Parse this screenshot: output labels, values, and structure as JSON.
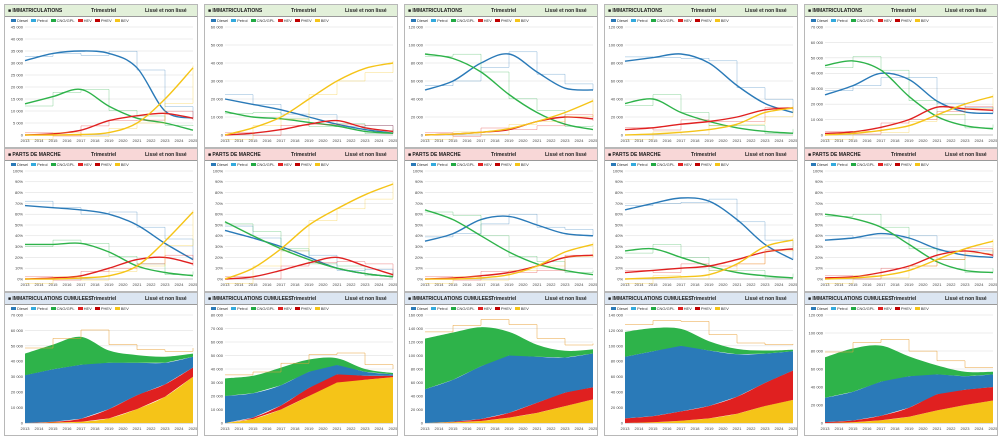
{
  "labels": {
    "freq": "Trimestriel",
    "scope": "Lissé et non lissé"
  },
  "legend": [
    {
      "name": "Diesel",
      "color": "#2a7ab8"
    },
    {
      "name": "Petrol",
      "color": "#33aadd"
    },
    {
      "name": "CNG/GPL",
      "color": "#22aa44"
    },
    {
      "name": "HEV",
      "color": "#e02020"
    },
    {
      "name": "PHEV",
      "color": "#c00000"
    },
    {
      "name": "BEV",
      "color": "#f5c418"
    }
  ],
  "years": [
    "2013",
    "2014",
    "2015",
    "2016",
    "2017",
    "2018",
    "2019",
    "2020",
    "2021",
    "2022",
    "2023",
    "2024",
    "2025"
  ],
  "colors": {
    "diesel": "#2a7ab8",
    "green": "#2eb34a",
    "hev": "#e02020",
    "bev": "#f5c418",
    "row1": "#e2f0d9",
    "row2": "#f8d7d7",
    "row3": "#dbe5f1"
  },
  "chart_data": [
    {
      "type": "line",
      "title": "IMMATRICULATIONS",
      "ylim": [
        0,
        45000
      ],
      "yticks": [
        "0",
        "5 000",
        "10 000",
        "15 000",
        "20 000",
        "25 000",
        "30 000",
        "35 000",
        "40 000",
        "45 000"
      ],
      "series": [
        {
          "values": [
            31000,
            34000,
            35000,
            34000,
            28000,
            10000,
            7000
          ]
        },
        {
          "values": [
            13000,
            16000,
            19000,
            12000,
            7000,
            5000,
            2000
          ]
        },
        {
          "values": [
            0,
            500,
            2000,
            6000,
            8000,
            9000,
            7000
          ]
        },
        {
          "values": [
            0,
            0,
            200,
            1000,
            5000,
            15000,
            28000
          ]
        }
      ]
    },
    {
      "type": "line",
      "title": "IMMATRICULATIONS",
      "ylim": [
        0,
        60000
      ],
      "yticks": [
        "0",
        "10 000",
        "20 000",
        "30 000",
        "40 000",
        "50 000",
        "60 000"
      ],
      "series": [
        {
          "values": [
            20000,
            17000,
            14000,
            10000,
            6000,
            3000,
            1000
          ]
        },
        {
          "values": [
            13000,
            10000,
            9000,
            7000,
            5000,
            2000,
            1000
          ]
        },
        {
          "values": [
            0,
            1000,
            3000,
            6000,
            8000,
            4000,
            2000
          ]
        },
        {
          "values": [
            0,
            4000,
            10000,
            20000,
            30000,
            37000,
            40000
          ]
        }
      ]
    },
    {
      "type": "line",
      "title": "IMMATRICULATIONS",
      "ylim": [
        0,
        120000
      ],
      "yticks": [
        "0",
        "20 000",
        "40 000",
        "60 000",
        "80 000",
        "100 000",
        "120 000"
      ],
      "series": [
        {
          "values": [
            50000,
            60000,
            80000,
            90000,
            70000,
            52000,
            50000
          ]
        },
        {
          "values": [
            90000,
            85000,
            70000,
            45000,
            25000,
            12000,
            6000
          ]
        },
        {
          "values": [
            0,
            1000,
            3000,
            6000,
            15000,
            20000,
            18000
          ]
        },
        {
          "values": [
            0,
            1000,
            3000,
            7000,
            15000,
            25000,
            38000
          ]
        }
      ]
    },
    {
      "type": "line",
      "title": "IMMATRICULATIONS",
      "ylim": [
        0,
        120000
      ],
      "yticks": [
        "0",
        "20 000",
        "40 000",
        "60 000",
        "80 000",
        "100 000",
        "120 000"
      ],
      "series": [
        {
          "values": [
            82000,
            86000,
            90000,
            80000,
            55000,
            35000,
            25000
          ]
        },
        {
          "values": [
            35000,
            40000,
            25000,
            15000,
            8000,
            4000,
            2000
          ]
        },
        {
          "values": [
            6000,
            8000,
            12000,
            15000,
            20000,
            28000,
            30000
          ]
        },
        {
          "values": [
            0,
            1000,
            3000,
            6000,
            12000,
            25000,
            30000
          ]
        }
      ]
    },
    {
      "type": "line",
      "title": "IMMATRICULATIONS",
      "ylim": [
        0,
        70000
      ],
      "yticks": [
        "0",
        "10 000",
        "20 000",
        "30 000",
        "40 000",
        "50 000",
        "60 000",
        "70 000"
      ],
      "series": [
        {
          "values": [
            26000,
            32000,
            40000,
            36000,
            22000,
            15000,
            14000
          ]
        },
        {
          "values": [
            45000,
            48000,
            42000,
            25000,
            12000,
            6000,
            4000
          ]
        },
        {
          "values": [
            1000,
            2000,
            5000,
            10000,
            18000,
            17000,
            16000
          ]
        },
        {
          "values": [
            0,
            1000,
            3000,
            6000,
            13000,
            20000,
            25000
          ]
        }
      ]
    },
    {
      "type": "line",
      "title": "PARTS DE MARCHE",
      "ylim": [
        0,
        100
      ],
      "yticks": [
        "0%",
        "10%",
        "20%",
        "30%",
        "40%",
        "50%",
        "60%",
        "70%",
        "80%",
        "90%",
        "100%"
      ],
      "series": [
        {
          "values": [
            68,
            66,
            64,
            60,
            50,
            33,
            18
          ]
        },
        {
          "values": [
            32,
            32,
            33,
            25,
            12,
            6,
            3
          ]
        },
        {
          "values": [
            0,
            1,
            3,
            10,
            18,
            20,
            14
          ]
        },
        {
          "values": [
            0,
            0,
            1,
            3,
            12,
            35,
            62
          ]
        }
      ]
    },
    {
      "type": "line",
      "title": "PARTS DE MARCHE",
      "ylim": [
        0,
        100
      ],
      "yticks": [
        "0%",
        "10%",
        "20%",
        "30%",
        "40%",
        "50%",
        "60%",
        "70%",
        "80%",
        "90%",
        "100%"
      ],
      "series": [
        {
          "values": [
            45,
            38,
            30,
            20,
            10,
            5,
            2
          ]
        },
        {
          "values": [
            53,
            40,
            28,
            18,
            10,
            5,
            2
          ]
        },
        {
          "values": [
            0,
            2,
            8,
            15,
            20,
            12,
            4
          ]
        },
        {
          "values": [
            0,
            10,
            28,
            50,
            65,
            78,
            88
          ]
        }
      ]
    },
    {
      "type": "line",
      "title": "PARTS DE MARCHE",
      "ylim": [
        0,
        100
      ],
      "yticks": [
        "0%",
        "10%",
        "20%",
        "30%",
        "40%",
        "50%",
        "60%",
        "70%",
        "80%",
        "90%",
        "100%"
      ],
      "series": [
        {
          "values": [
            35,
            42,
            55,
            58,
            50,
            42,
            40
          ]
        },
        {
          "values": [
            64,
            55,
            40,
            25,
            14,
            8,
            4
          ]
        },
        {
          "values": [
            0,
            1,
            3,
            6,
            12,
            20,
            22
          ]
        },
        {
          "values": [
            0,
            0,
            1,
            4,
            12,
            25,
            32
          ]
        }
      ]
    },
    {
      "type": "line",
      "title": "PARTS DE MARCHE",
      "ylim": [
        0,
        100
      ],
      "yticks": [
        "0%",
        "10%",
        "20%",
        "30%",
        "40%",
        "50%",
        "60%",
        "70%",
        "80%",
        "90%",
        "100%"
      ],
      "series": [
        {
          "values": [
            64,
            70,
            75,
            72,
            55,
            32,
            18
          ]
        },
        {
          "values": [
            26,
            28,
            20,
            12,
            6,
            3,
            1
          ]
        },
        {
          "values": [
            6,
            8,
            10,
            12,
            18,
            25,
            28
          ]
        },
        {
          "values": [
            0,
            1,
            2,
            4,
            14,
            30,
            36
          ]
        }
      ]
    },
    {
      "type": "line",
      "title": "PARTS DE MARCHE",
      "ylim": [
        0,
        100
      ],
      "yticks": [
        "0%",
        "10%",
        "20%",
        "30%",
        "40%",
        "50%",
        "60%",
        "70%",
        "80%",
        "90%",
        "100%"
      ],
      "series": [
        {
          "values": [
            36,
            38,
            42,
            38,
            28,
            22,
            20
          ]
        },
        {
          "values": [
            60,
            56,
            48,
            32,
            16,
            8,
            6
          ]
        },
        {
          "values": [
            1,
            2,
            6,
            12,
            22,
            26,
            22
          ]
        },
        {
          "values": [
            0,
            1,
            3,
            8,
            18,
            28,
            35
          ]
        }
      ]
    },
    {
      "type": "area",
      "title": "IMMATRICULATIONS CUMULEES",
      "ylim": [
        0,
        70000
      ],
      "yticks": [
        "0",
        "10 000",
        "20 000",
        "30 000",
        "40 000",
        "50 000",
        "60 000",
        "70 000"
      ],
      "layers": [
        {
          "values": [
            0,
            300,
            800,
            3000,
            9000,
            17000,
            30000
          ]
        },
        {
          "values": [
            0,
            500,
            2000,
            6000,
            9000,
            8000,
            6000
          ]
        },
        {
          "values": [
            31000,
            34000,
            35000,
            30000,
            21000,
            14000,
            7000
          ]
        },
        {
          "values": [
            14000,
            16000,
            18000,
            8000,
            5000,
            4000,
            2000
          ]
        }
      ]
    },
    {
      "type": "area",
      "title": "IMMATRICULATIONS CUMULEES",
      "ylim": [
        0,
        80000
      ],
      "yticks": [
        "0",
        "10 000",
        "20 000",
        "30 000",
        "40 000",
        "50 000",
        "60 000",
        "70 000",
        "80 000"
      ],
      "layers": [
        {
          "values": [
            0,
            3000,
            10000,
            20000,
            30000,
            32000,
            34000
          ]
        },
        {
          "values": [
            0,
            1000,
            3000,
            6000,
            6000,
            3000,
            1000
          ]
        },
        {
          "values": [
            20000,
            18000,
            15000,
            12000,
            7000,
            3000,
            1000
          ]
        },
        {
          "values": [
            13000,
            13000,
            13000,
            9000,
            5000,
            2000,
            1000
          ]
        }
      ]
    },
    {
      "type": "area",
      "title": "IMMATRICULATIONS CUMULEES",
      "ylim": [
        0,
        160000
      ],
      "yticks": [
        "0",
        "20 000",
        "40 000",
        "60 000",
        "80 000",
        "100 000",
        "120 000",
        "140 000",
        "160 000"
      ],
      "layers": [
        {
          "values": [
            0,
            1000,
            3000,
            8000,
            15000,
            25000,
            35000
          ]
        },
        {
          "values": [
            0,
            1000,
            3000,
            7000,
            15000,
            20000,
            18000
          ]
        },
        {
          "values": [
            50000,
            62000,
            78000,
            85000,
            68000,
            52000,
            50000
          ]
        },
        {
          "values": [
            75000,
            70000,
            58000,
            35000,
            18000,
            10000,
            6000
          ]
        }
      ]
    },
    {
      "type": "area",
      "title": "IMMATRICULATIONS CUMULEES",
      "ylim": [
        0,
        140000
      ],
      "yticks": [
        "0",
        "20 000",
        "40 000",
        "60 000",
        "80 000",
        "100 000",
        "120 000",
        "140 000"
      ],
      "layers": [
        {
          "values": [
            0,
            1000,
            3000,
            6000,
            12000,
            22000,
            30000
          ]
        },
        {
          "values": [
            6000,
            8000,
            12000,
            16000,
            22000,
            30000,
            38000
          ]
        },
        {
          "values": [
            80000,
            84000,
            85000,
            72000,
            55000,
            38000,
            25000
          ]
        },
        {
          "values": [
            32000,
            30000,
            22000,
            12000,
            7000,
            4000,
            2000
          ]
        }
      ]
    },
    {
      "type": "area",
      "title": "IMMATRICULATIONS CUMULEES",
      "ylim": [
        0,
        120000
      ],
      "yticks": [
        "0",
        "20 000",
        "40 000",
        "60 000",
        "80 000",
        "100 000",
        "120 000"
      ],
      "layers": [
        {
          "values": [
            0,
            800,
            3000,
            7000,
            14000,
            20000,
            25000
          ]
        },
        {
          "values": [
            1000,
            2000,
            5000,
            10000,
            18000,
            17000,
            15000
          ]
        },
        {
          "values": [
            27000,
            32000,
            38000,
            35000,
            22000,
            15000,
            14000
          ]
        },
        {
          "values": [
            45000,
            48000,
            40000,
            22000,
            10000,
            5000,
            3000
          ]
        }
      ]
    }
  ]
}
